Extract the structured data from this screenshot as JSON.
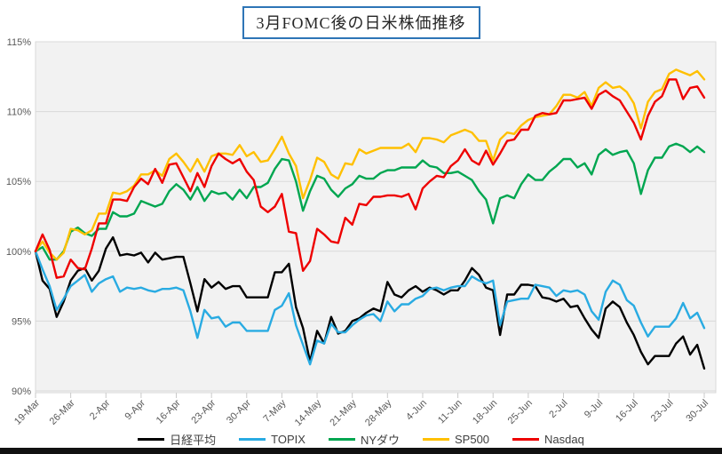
{
  "title": "3月FOMC後の日米株価推移",
  "chart_data": {
    "type": "line",
    "title": "3月FOMC後の日米株価推移",
    "x_axis": {
      "tick_labels": [
        "19-Mar",
        "26-Mar",
        "2-Apr",
        "9-Apr",
        "16-Apr",
        "23-Apr",
        "30-Apr",
        "7-May",
        "14-May",
        "21-May",
        "28-May",
        "4-Jun",
        "11-Jun",
        "18-Jun",
        "25-Jun",
        "2-Jul",
        "9-Jul",
        "16-Jul",
        "23-Jul",
        "30-Jul"
      ],
      "points_per_tick": 5,
      "total_points": 96,
      "note": "daily weekday points 19-Mar to 30-Jul, tick every Friday"
    },
    "y_axis": {
      "ticks": [
        90,
        95,
        100,
        105,
        110,
        115
      ],
      "format": "percent",
      "min": 90,
      "max": 115
    },
    "grid": {
      "horizontal": true,
      "vertical": false
    },
    "legend_position": "bottom",
    "series": [
      {
        "key": "nikkei",
        "name": "日経平均",
        "color": "#000000",
        "values": [
          100,
          97.9,
          97.3,
          95.3,
          96.4,
          97.9,
          98.6,
          98.8,
          97.9,
          98.6,
          100.2,
          101,
          99.7,
          99.8,
          99.7,
          99.9,
          99.2,
          99.9,
          99.4,
          99.5,
          99.6,
          99.6,
          97.7,
          95.7,
          98,
          97.4,
          97.8,
          97.3,
          97.5,
          97.5,
          96.7,
          96.7,
          96.7,
          96.7,
          98.5,
          98.5,
          99.1,
          96,
          94.5,
          92.1,
          94.3,
          93.4,
          95.3,
          94.1,
          94.3,
          95,
          95.2,
          95.6,
          95.9,
          95.7,
          97.8,
          96.9,
          96.7,
          97.2,
          97.5,
          97.1,
          97.4,
          97.2,
          96.9,
          97.2,
          97.2,
          97.9,
          98.8,
          98.3,
          97.4,
          97.2,
          94,
          96.9,
          96.9,
          97.6,
          97.6,
          97.5,
          96.7,
          96.6,
          96.4,
          96.6,
          96,
          96.1,
          95.2,
          94.4,
          93.8,
          95.9,
          96.4,
          96,
          94.9,
          94,
          92.8,
          91.9,
          92.5,
          92.5,
          92.5,
          93.4,
          93.9,
          92.6,
          93.3,
          91.6
        ]
      },
      {
        "key": "topix",
        "name": "TOPIX",
        "color": "#29ABE2",
        "values": [
          100,
          98.7,
          97.5,
          95.8,
          96.6,
          97.5,
          97.9,
          98.3,
          97.1,
          97.7,
          98,
          98.2,
          97.1,
          97.4,
          97.3,
          97.4,
          97.2,
          97.1,
          97.3,
          97.3,
          97.4,
          97.2,
          95.7,
          93.8,
          95.8,
          95.2,
          95.3,
          94.6,
          94.9,
          94.9,
          94.3,
          94.3,
          94.3,
          94.3,
          95.8,
          96.1,
          97,
          94.7,
          93.3,
          91.9,
          93.6,
          93.4,
          94.8,
          94.2,
          94.2,
          94.7,
          95.1,
          95.4,
          95.5,
          95,
          96.4,
          95.7,
          96.2,
          96.2,
          96.6,
          96.8,
          97.3,
          97.4,
          97.2,
          97.4,
          97.5,
          97.5,
          98.2,
          97.9,
          97.7,
          97.9,
          94.7,
          96.4,
          96.5,
          96.6,
          96.6,
          97.6,
          97.5,
          97.4,
          96.8,
          97.2,
          97.1,
          97.2,
          96.9,
          95.7,
          95.1,
          97.1,
          97.9,
          97.6,
          96.5,
          96.1,
          94.9,
          93.9,
          94.6,
          94.6,
          94.6,
          95.2,
          96.3,
          95.2,
          95.6,
          94.5
        ]
      },
      {
        "key": "ny-dow",
        "name": "NYダウ",
        "color": "#00A650",
        "values": [
          100,
          100.3,
          99.4,
          99.4,
          100,
          101.4,
          101.7,
          101.3,
          101.1,
          101.6,
          101.6,
          102.8,
          102.5,
          102.5,
          102.7,
          103.6,
          103.4,
          103.2,
          103.4,
          104.3,
          104.8,
          104.4,
          103.7,
          104.6,
          103.6,
          104.3,
          104.1,
          104.2,
          103.7,
          104.4,
          103.8,
          104.6,
          104.6,
          104.9,
          105.9,
          106.6,
          106.5,
          105,
          102.9,
          104.3,
          105.4,
          105.2,
          104.4,
          103.9,
          104.5,
          104.8,
          105.4,
          105.2,
          105.2,
          105.6,
          105.8,
          105.8,
          106,
          106,
          106,
          106.5,
          106.1,
          106,
          105.6,
          105.6,
          105.7,
          105.4,
          105.1,
          104.3,
          103.7,
          102,
          103.8,
          104,
          103.8,
          104.8,
          105.5,
          105.1,
          105.1,
          105.7,
          106.1,
          106.6,
          106.6,
          106,
          106.3,
          105.5,
          106.9,
          107.3,
          106.9,
          107.1,
          107.2,
          106.3,
          104.1,
          105.8,
          106.7,
          106.7,
          107.5,
          107.7,
          107.5,
          107.1,
          107.5,
          107.1
        ]
      },
      {
        "key": "sp500",
        "name": "SP500",
        "color": "#FFC000",
        "values": [
          100,
          100.7,
          99.9,
          99.4,
          99.9,
          101.6,
          101.5,
          101.2,
          101.5,
          102.7,
          102.7,
          104.2,
          104.1,
          104.3,
          104.7,
          105.5,
          105.5,
          105.8,
          105.4,
          106.6,
          107,
          106.4,
          105.7,
          106.6,
          105.7,
          106.8,
          107,
          107,
          106.9,
          107.6,
          106.8,
          107.1,
          106.4,
          106.5,
          107.3,
          108.2,
          107,
          106.1,
          103.8,
          105.1,
          106.7,
          106.4,
          105.5,
          105.2,
          106.3,
          106.2,
          107.3,
          107,
          107.2,
          107.4,
          107.4,
          107.4,
          107.4,
          107.7,
          107.1,
          108.1,
          108.1,
          108,
          107.8,
          108.3,
          108.5,
          108.7,
          108.5,
          107.9,
          107.9,
          106.5,
          108,
          108.5,
          108.4,
          109,
          109.4,
          109.6,
          109.7,
          109.8,
          110.4,
          111.2,
          111.2,
          111,
          111.4,
          110.4,
          111.7,
          112.1,
          111.7,
          111.8,
          111.4,
          110.6,
          108.8,
          110.7,
          111.4,
          111.6,
          112.7,
          113,
          112.8,
          112.6,
          112.9,
          112.3
        ]
      },
      {
        "key": "nasdaq",
        "name": "Nasdaq",
        "color": "#EE0000",
        "values": [
          100,
          101.2,
          100.1,
          98.1,
          98.2,
          99.4,
          98.8,
          98.7,
          100.2,
          102,
          102,
          103.7,
          103.7,
          103.6,
          104.6,
          105.2,
          104.8,
          105.9,
          104.9,
          106.2,
          106.3,
          105.3,
          104.3,
          105.6,
          104.6,
          106.1,
          107,
          106.6,
          106.3,
          106.6,
          105.7,
          105.1,
          103.2,
          102.8,
          103.2,
          104.1,
          101.4,
          101.3,
          98.6,
          99.3,
          101.6,
          101.2,
          100.7,
          100.6,
          102.4,
          101.9,
          103.4,
          103.3,
          103.9,
          103.9,
          104,
          104,
          103.9,
          104.1,
          103,
          104.5,
          105,
          105.4,
          105.3,
          106.1,
          106.5,
          107.3,
          106.5,
          106.2,
          107.2,
          106.2,
          107,
          107.9,
          108,
          108.7,
          108.7,
          109.7,
          109.9,
          109.8,
          109.9,
          110.8,
          110.8,
          110.9,
          111,
          110.2,
          111.2,
          111.5,
          111.1,
          110.8,
          110,
          109.2,
          108,
          109.7,
          110.7,
          111.1,
          112.3,
          112.3,
          110.9,
          111.7,
          111.8,
          111
        ]
      }
    ]
  },
  "style": {
    "plot_bg": "#f2f2f2",
    "grid_color": "#d9d9d9",
    "tick_color": "#c9c9c9",
    "axis_text_color": "#595959",
    "title_border_color": "#2E75B6",
    "title_text_color": "#262626",
    "legend_text_color": "#404040",
    "bottom_bar_color": "#111111"
  }
}
